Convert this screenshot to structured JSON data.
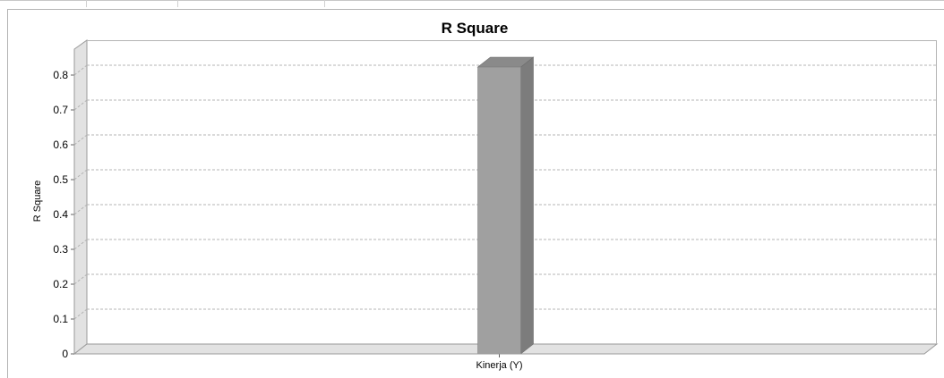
{
  "chart_data": {
    "type": "bar",
    "title": "R Square",
    "xlabel": "",
    "ylabel": "R Square",
    "categories": [
      "Kinerja (Y)"
    ],
    "values": [
      0.823
    ],
    "ylim": [
      0,
      0.85
    ],
    "yticks": [
      "0",
      "0.1",
      "0.2",
      "0.3",
      "0.4",
      "0.5",
      "0.6",
      "0.7",
      "0.8"
    ],
    "grid": true,
    "legend": "none",
    "style": "3d",
    "colors": {
      "bar_front": "#a0a0a0",
      "bar_side": "#7c7c7c",
      "bar_top": "#8a8a8a",
      "wall": "#e2e2e2",
      "grid": "#b4b4b4",
      "frame": "#9a9a9a"
    }
  }
}
